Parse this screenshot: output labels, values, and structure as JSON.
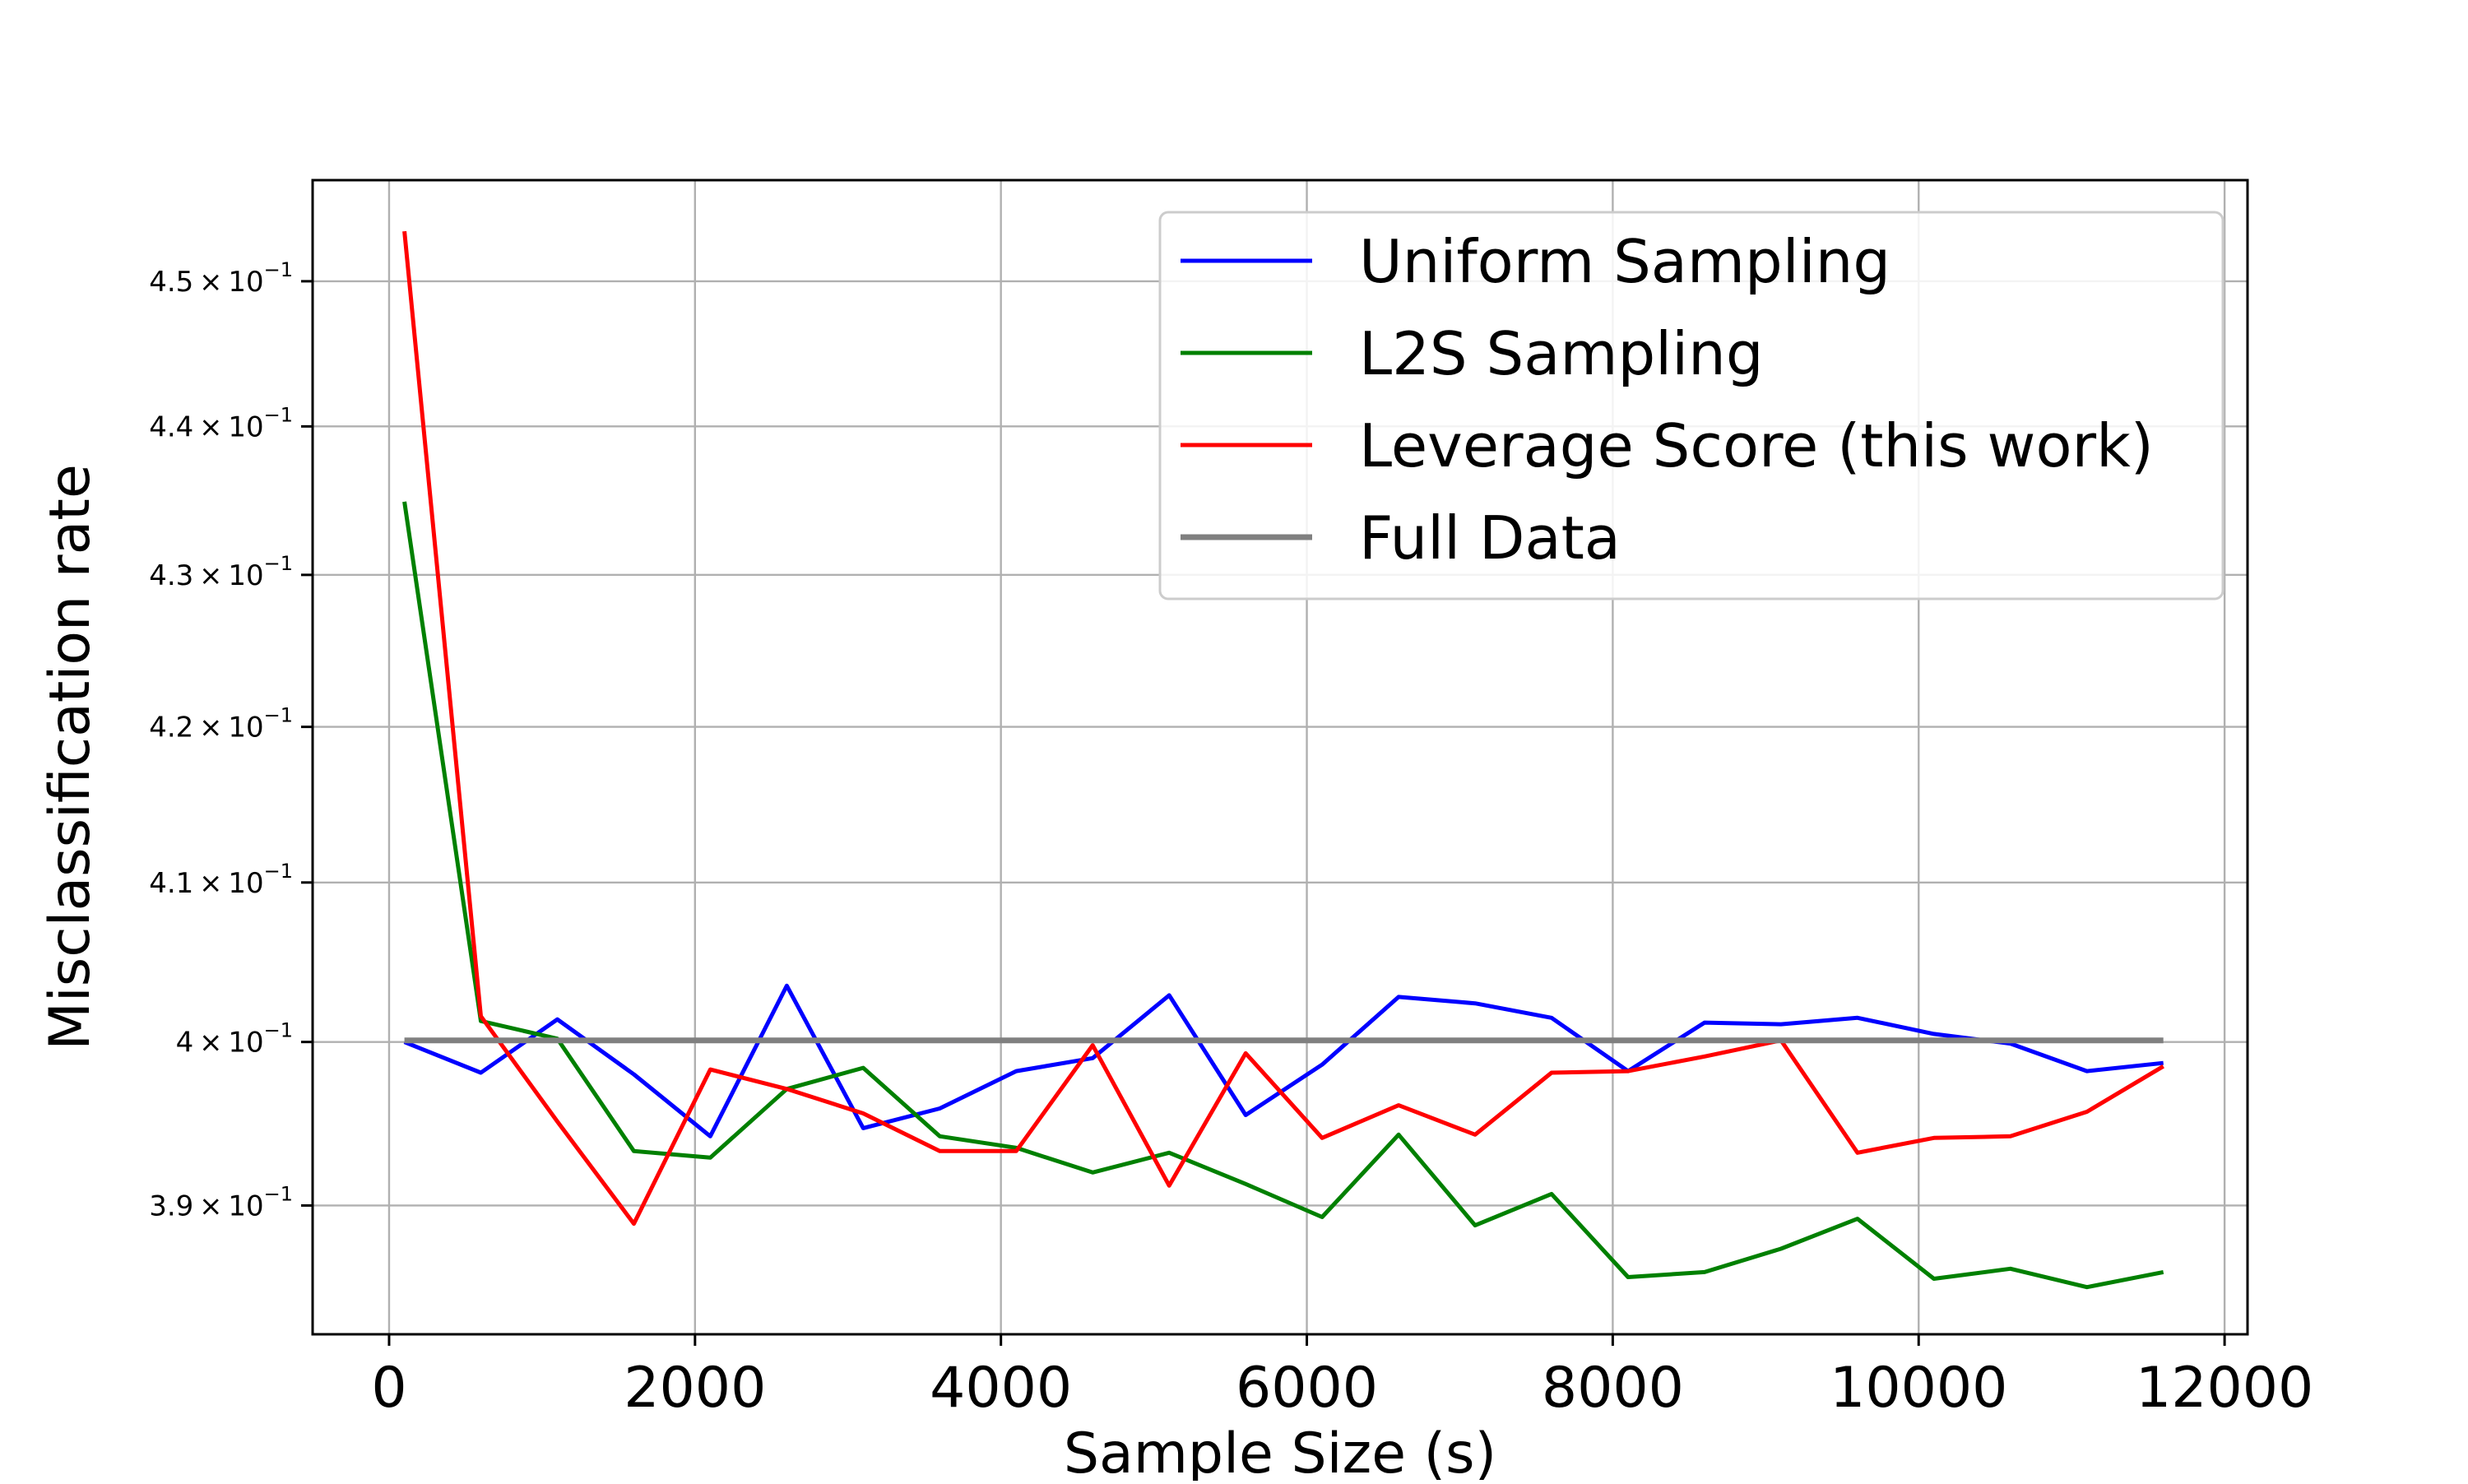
{
  "chart_data": {
    "type": "line",
    "title": "",
    "xlabel": "Sample Size (s)",
    "ylabel": "Misclassification rate",
    "yscale": "log",
    "xlim": [
      -500,
      12150
    ],
    "ylim": [
      0.3823,
      0.4571
    ],
    "x_ticks": [
      0,
      2000,
      4000,
      6000,
      8000,
      10000,
      12000
    ],
    "x_tick_labels": [
      "0",
      "2000",
      "4000",
      "6000",
      "8000",
      "10000",
      "12000"
    ],
    "y_ticks": [
      0.39,
      0.4,
      0.41,
      0.42,
      0.43,
      0.44,
      0.45
    ],
    "y_tick_labels": [
      {
        "mantissa": "3.9",
        "exponent": "−1"
      },
      {
        "mantissa": "4",
        "exponent": "−1"
      },
      {
        "mantissa": "4.1",
        "exponent": "−1"
      },
      {
        "mantissa": "4.2",
        "exponent": "−1"
      },
      {
        "mantissa": "4.3",
        "exponent": "−1"
      },
      {
        "mantissa": "4.4",
        "exponent": "−1"
      },
      {
        "mantissa": "4.5",
        "exponent": "−1"
      }
    ],
    "grid": true,
    "legend_position": "top-right",
    "x": [
      100,
      600,
      1100,
      1600,
      2100,
      2600,
      3100,
      3600,
      4100,
      4600,
      5100,
      5600,
      6100,
      6600,
      7100,
      7600,
      8100,
      8600,
      9100,
      9600,
      10100,
      10600,
      11100,
      11600
    ],
    "series": [
      {
        "name": "Uniform Sampling",
        "color": "#0000ff",
        "line_width": 5,
        "values": [
          0.4,
          0.3981,
          0.4014,
          0.398,
          0.3942,
          0.4035,
          0.3947,
          0.3959,
          0.3982,
          0.399,
          0.4029,
          0.3955,
          0.3986,
          0.4028,
          0.4024,
          0.4015,
          0.3982,
          0.4012,
          0.4011,
          0.4015,
          0.4005,
          0.3999,
          0.3982,
          0.3987
        ]
      },
      {
        "name": "L2S Sampling",
        "color": "#008000",
        "line_width": 5,
        "values": [
          0.4349,
          0.4013,
          0.4002,
          0.3933,
          0.3929,
          0.3971,
          0.3984,
          0.3942,
          0.3935,
          0.392,
          0.3932,
          0.3913,
          0.3893,
          0.3943,
          0.3888,
          0.3907,
          0.3857,
          0.386,
          0.3874,
          0.3892,
          0.3856,
          0.3862,
          0.3851,
          0.386
        ]
      },
      {
        "name": "Leverage Score (this work)",
        "color": "#ff0000",
        "line_width": 5,
        "values": [
          0.4535,
          0.4016,
          0.3951,
          0.3889,
          0.3983,
          0.3971,
          0.3956,
          0.3933,
          0.3933,
          0.3998,
          0.3912,
          0.3993,
          0.3941,
          0.3961,
          0.3943,
          0.3981,
          0.3982,
          0.3991,
          0.4001,
          0.3932,
          0.3941,
          0.3942,
          0.3957,
          0.3985
        ]
      },
      {
        "name": "Full Data",
        "color": "#808080",
        "line_width": 7,
        "values": [
          0.4001,
          0.4001,
          0.4001,
          0.4001,
          0.4001,
          0.4001,
          0.4001,
          0.4001,
          0.4001,
          0.4001,
          0.4001,
          0.4001,
          0.4001,
          0.4001,
          0.4001,
          0.4001,
          0.4001,
          0.4001,
          0.4001,
          0.4001,
          0.4001,
          0.4001,
          0.4001,
          0.4001
        ]
      }
    ]
  }
}
